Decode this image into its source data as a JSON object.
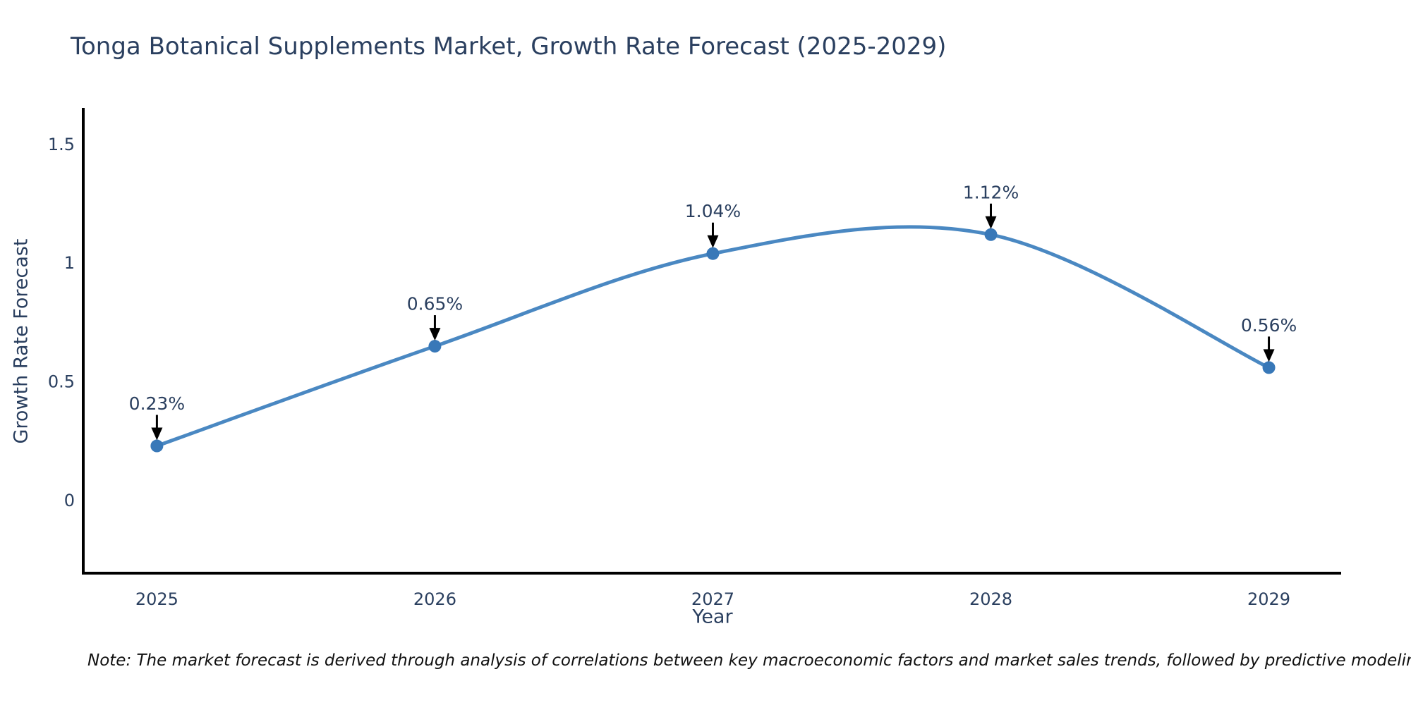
{
  "title": "Tonga Botanical Supplements Market, Growth Rate Forecast (2025-2029)",
  "note": "Note: The market forecast is derived through analysis of correlations between key macroeconomic factors and market sales trends, followed by predictive modeling to project future sales",
  "chart_data": {
    "type": "line",
    "title": "Tonga Botanical Supplements Market, Growth Rate Forecast (2025-2029)",
    "xlabel": "Year",
    "ylabel": "Growth Rate Forecast",
    "x": [
      2025,
      2026,
      2027,
      2028,
      2029
    ],
    "values": [
      0.23,
      0.65,
      1.04,
      1.12,
      0.56
    ],
    "point_labels": [
      "0.23%",
      "0.65%",
      "1.04%",
      "1.12%",
      "0.56%"
    ],
    "x_tick_labels": [
      "2025",
      "2026",
      "2027",
      "2028",
      "2029"
    ],
    "y_ticks": [
      0,
      0.5,
      1,
      1.5
    ],
    "y_tick_labels": [
      "0",
      "0.5",
      "1",
      "1.5"
    ],
    "xlim": [
      2024.73,
      2029.26
    ],
    "ylim": [
      -0.306,
      1.648
    ],
    "line_shape": "spline",
    "grid": false,
    "legend": "none",
    "colors": {
      "line": "#4a88c2",
      "marker": "#3878b8",
      "text": "#2a3f5f",
      "axis": "#000000",
      "arrow": "#000000",
      "background": "#ffffff"
    }
  }
}
